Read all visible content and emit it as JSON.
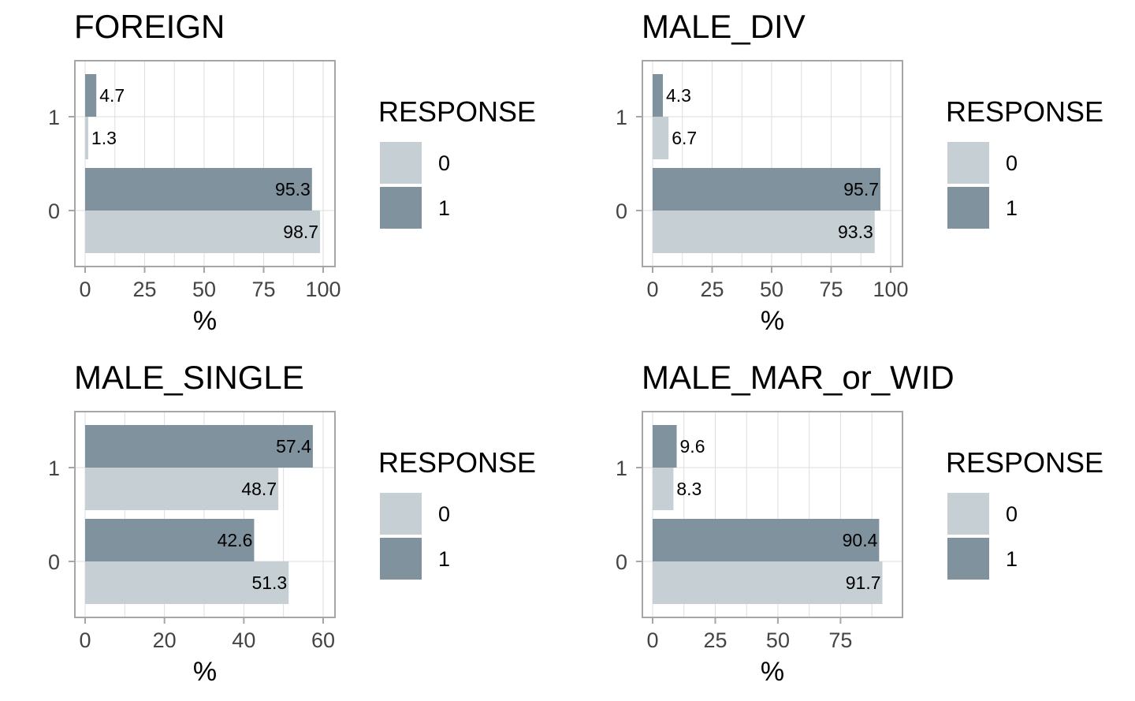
{
  "colors": {
    "response_0": "#c5cfd4",
    "response_1": "#7f929d",
    "grid": "#dddddd",
    "panel_border": "#a6a6a6",
    "text": "#000000",
    "tick_text": "#444444"
  },
  "chart_data": [
    {
      "type": "bar",
      "title": "FOREIGN",
      "xlabel": "%",
      "ylabel": "",
      "categories": [
        "0",
        "1"
      ],
      "series": [
        {
          "name": "0",
          "values": [
            98.7,
            1.3
          ]
        },
        {
          "name": "1",
          "values": [
            95.3,
            4.7
          ]
        }
      ],
      "xlim": [
        0,
        100
      ],
      "xticks": [
        0,
        25,
        50,
        75,
        100
      ],
      "legend": {
        "title": "RESPONSE",
        "position": "right"
      },
      "grid": true,
      "orientation": "horizontal"
    },
    {
      "type": "bar",
      "title": "MALE_DIV",
      "xlabel": "%",
      "ylabel": "",
      "categories": [
        "0",
        "1"
      ],
      "series": [
        {
          "name": "0",
          "values": [
            93.3,
            6.7
          ]
        },
        {
          "name": "1",
          "values": [
            95.7,
            4.3
          ]
        }
      ],
      "xlim": [
        0,
        100
      ],
      "xticks": [
        0,
        25,
        50,
        75,
        100
      ],
      "legend": {
        "title": "RESPONSE",
        "position": "right"
      },
      "grid": true,
      "orientation": "horizontal"
    },
    {
      "type": "bar",
      "title": "MALE_SINGLE",
      "xlabel": "%",
      "ylabel": "",
      "categories": [
        "0",
        "1"
      ],
      "series": [
        {
          "name": "0",
          "values": [
            51.3,
            48.7
          ]
        },
        {
          "name": "1",
          "values": [
            42.6,
            57.4
          ]
        }
      ],
      "xlim": [
        0,
        60
      ],
      "xticks": [
        0,
        20,
        40,
        60
      ],
      "legend": {
        "title": "RESPONSE",
        "position": "right"
      },
      "grid": true,
      "orientation": "horizontal"
    },
    {
      "type": "bar",
      "title": "MALE_MAR_or_WID",
      "xlabel": "%",
      "ylabel": "",
      "categories": [
        "0",
        "1"
      ],
      "series": [
        {
          "name": "0",
          "values": [
            91.7,
            8.3
          ]
        },
        {
          "name": "1",
          "values": [
            90.4,
            9.6
          ]
        }
      ],
      "xlim": [
        0,
        95
      ],
      "xticks": [
        0,
        25,
        50,
        75
      ],
      "legend": {
        "title": "RESPONSE",
        "position": "right"
      },
      "grid": true,
      "orientation": "horizontal"
    }
  ]
}
